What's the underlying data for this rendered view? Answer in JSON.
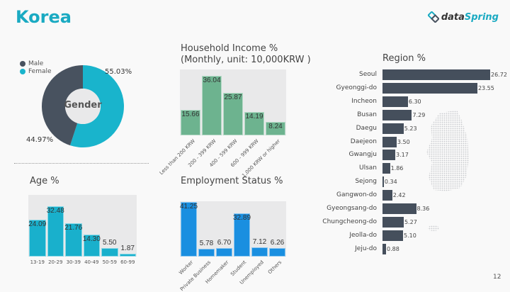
{
  "header": {
    "title": "Korea",
    "logo_text_a": "data",
    "logo_text_b": "Spring",
    "page_number": "12"
  },
  "colors": {
    "accent": "#1aaac2",
    "male": "#48525f",
    "female": "#19b4cc",
    "income": "#6db38f",
    "age": "#19b0cc",
    "employment": "#1a8fe0",
    "region": "#454f5c"
  },
  "gender": {
    "center_label": "Gender",
    "legend": [
      {
        "label": "Male"
      },
      {
        "label": "Female"
      }
    ],
    "male_label": "44.97%",
    "female_label": "55.03%",
    "male": 44.97,
    "female": 55.03
  },
  "chart_data": [
    {
      "type": "bar",
      "title": "Household Income %",
      "subtitle": "(Monthly, unit: 10,000KRW )",
      "categories": [
        "Less than 200 KRW",
        "200 - 399 KRW",
        "400 - 599 KRW",
        "600 - 999 KRW",
        "1,000 KRW or higher"
      ],
      "values": [
        15.66,
        36.04,
        25.87,
        14.19,
        8.24
      ],
      "labels": [
        "15.66",
        "36.04",
        "25.87",
        "14.19",
        "8.24"
      ],
      "ylim": [
        0,
        40
      ]
    },
    {
      "type": "bar",
      "title": "Age %",
      "categories": [
        "13-19",
        "20-29",
        "30-39",
        "40-49",
        "50-59",
        "60-99"
      ],
      "values": [
        24.09,
        32.48,
        21.76,
        14.3,
        5.5,
        1.87
      ],
      "labels": [
        "24.09",
        "32.48",
        "21.76",
        "14.30",
        "5.50",
        "1.87"
      ],
      "ylim": [
        0,
        40
      ]
    },
    {
      "type": "bar",
      "title": "Employment Status %",
      "categories": [
        "Worker",
        "Private Business",
        "Homemaker",
        "Student",
        "Unemployed",
        "Others"
      ],
      "values": [
        41.25,
        5.78,
        6.7,
        32.89,
        7.12,
        6.26
      ],
      "labels": [
        "41.25",
        "5.78",
        "6.70",
        "32.89",
        "7.12",
        "6.26"
      ],
      "ylim": [
        0,
        42
      ]
    },
    {
      "type": "bar",
      "orientation": "horizontal",
      "title": "Region %",
      "categories": [
        "Seoul",
        "Gyeonggi-do",
        "Incheon",
        "Busan",
        "Daegu",
        "Daejeon",
        "Gwangju",
        "Ulsan",
        "Sejong",
        "Gangwon-do",
        "Gyeongsang-do",
        "Chungcheong-do",
        "Jeolla-do",
        "Jeju-do"
      ],
      "values": [
        26.72,
        23.55,
        6.3,
        7.29,
        5.23,
        3.5,
        3.17,
        1.86,
        0.34,
        2.42,
        8.36,
        5.27,
        5.1,
        0.88
      ],
      "labels": [
        "26.72",
        "23.55",
        "6.30",
        "7.29",
        "5.23",
        "3.50",
        "3.17",
        "1.86",
        "0.34",
        "2.42",
        "8.36",
        "5.27",
        "5.10",
        "0.88"
      ],
      "xlim": [
        0,
        26.72
      ]
    }
  ]
}
